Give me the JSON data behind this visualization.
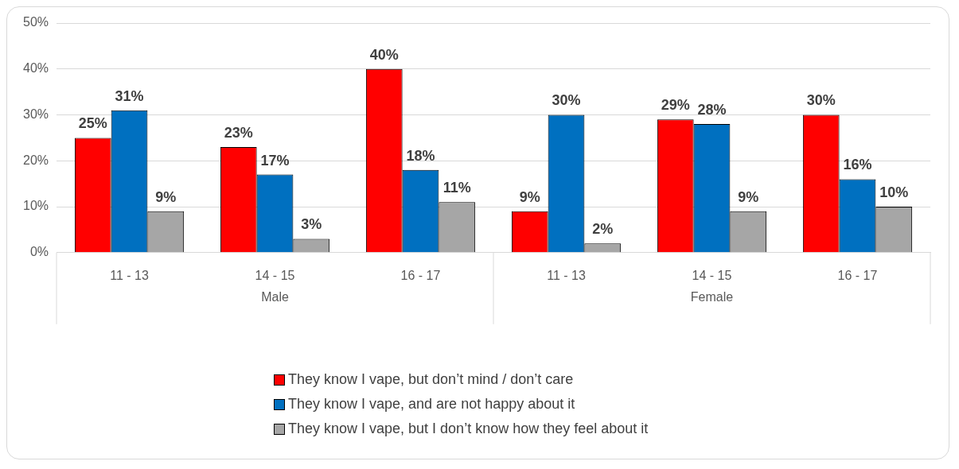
{
  "chart_data": {
    "type": "bar",
    "categories": [
      "11 - 13",
      "14 - 15",
      "16 - 17",
      "11 - 13",
      "14 - 15",
      "16 - 17"
    ],
    "annotations": [
      "Male",
      "Female"
    ],
    "series": [
      {
        "name": "They know I vape, but don’t mind / don’t care",
        "color": "#ff0000",
        "values": [
          25,
          23,
          40,
          9,
          29,
          30
        ],
        "value_labels": [
          "25%",
          "23%",
          "40%",
          "9%",
          "29%",
          "30%"
        ]
      },
      {
        "name": "They know I vape, and are not happy about it",
        "color": "#0070c0",
        "values": [
          31,
          17,
          18,
          30,
          28,
          16
        ],
        "value_labels": [
          "31%",
          "17%",
          "18%",
          "30%",
          "28%",
          "16%"
        ]
      },
      {
        "name": "They know I vape, but I don’t know how they feel about it",
        "color": "#a6a6a6",
        "values": [
          9,
          3,
          11,
          2,
          9,
          10
        ],
        "value_labels": [
          "9%",
          "3%",
          "11%",
          "2%",
          "9%",
          "10%"
        ]
      }
    ],
    "ylim": [
      0,
      50
    ],
    "yticks": [
      {
        "value": 0,
        "label": "0%"
      },
      {
        "value": 10,
        "label": "10%"
      },
      {
        "value": 20,
        "label": "20%"
      },
      {
        "value": 30,
        "label": "30%"
      },
      {
        "value": 40,
        "label": "40%"
      },
      {
        "value": 50,
        "label": "50%"
      }
    ],
    "grid": "y",
    "legend": "bottom"
  }
}
